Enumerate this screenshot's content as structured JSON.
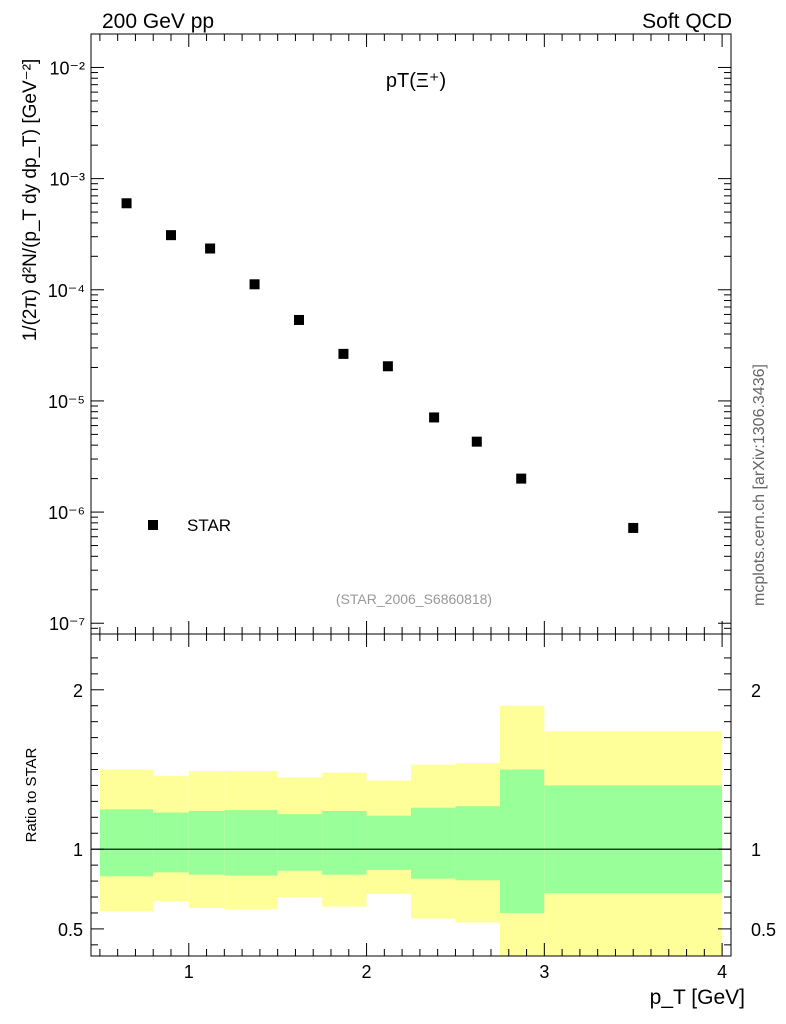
{
  "header": {
    "left": "200 GeV pp",
    "right": "Soft QCD"
  },
  "side_label": "mcplots.cern.ch [arXiv:1306.3436]",
  "watermark": "(STAR_2006_S6860818)",
  "chart_data": [
    {
      "type": "scatter",
      "panel": "main",
      "title": "pT(Ξ⁺)",
      "ylabel": "1/(2π) d²N/(p_T dy dp_T) [GeV⁻²]",
      "yscale": "log",
      "ylim": [
        8e-08,
        0.02
      ],
      "xlim": [
        0.45,
        4.05
      ],
      "ytick_labels": [
        "10⁻⁷",
        "10⁻⁶",
        "10⁻⁵",
        "10⁻⁴",
        "10⁻³",
        "10⁻²"
      ],
      "legend": [
        {
          "label": "STAR",
          "marker": "square",
          "color": "#000000"
        }
      ],
      "series": [
        {
          "name": "STAR",
          "x": [
            0.65,
            0.9,
            1.12,
            1.37,
            1.62,
            1.87,
            2.12,
            2.38,
            2.62,
            2.87,
            3.5
          ],
          "y": [
            0.0006,
            0.00031,
            0.000235,
            0.000112,
            5.35e-05,
            2.65e-05,
            2.05e-05,
            7.1e-06,
            4.3e-06,
            2e-06,
            7.2e-07
          ]
        }
      ]
    },
    {
      "type": "area",
      "panel": "ratio",
      "ylabel": "Ratio to STAR",
      "xlabel": "p_T [GeV]",
      "ylim": [
        0.33,
        2.35
      ],
      "xlim": [
        0.45,
        4.05
      ],
      "xtick_labels": [
        "1",
        "2",
        "3",
        "4"
      ],
      "ytick_labels": [
        "0.5",
        "1",
        "2"
      ],
      "reference_line": 1,
      "band_colors": {
        "outer": "#ffff99",
        "inner": "#99ff99"
      },
      "bins": [
        {
          "x0": 0.5,
          "x1": 0.8,
          "outer": [
            0.61,
            1.5
          ],
          "inner": [
            0.83,
            1.25
          ]
        },
        {
          "x0": 0.8,
          "x1": 1.0,
          "outer": [
            0.675,
            1.46
          ],
          "inner": [
            0.855,
            1.23
          ]
        },
        {
          "x0": 1.0,
          "x1": 1.2,
          "outer": [
            0.63,
            1.49
          ],
          "inner": [
            0.84,
            1.24
          ]
        },
        {
          "x0": 1.2,
          "x1": 1.5,
          "outer": [
            0.625,
            1.49
          ],
          "inner": [
            0.835,
            1.245
          ]
        },
        {
          "x0": 1.5,
          "x1": 1.75,
          "outer": [
            0.7,
            1.45
          ],
          "inner": [
            0.865,
            1.22
          ]
        },
        {
          "x0": 1.75,
          "x1": 2.0,
          "outer": [
            0.64,
            1.48
          ],
          "inner": [
            0.84,
            1.24
          ]
        },
        {
          "x0": 2.0,
          "x1": 2.25,
          "outer": [
            0.72,
            1.43
          ],
          "inner": [
            0.87,
            1.21
          ]
        },
        {
          "x0": 2.25,
          "x1": 2.5,
          "outer": [
            0.565,
            1.53
          ],
          "inner": [
            0.815,
            1.26
          ]
        },
        {
          "x0": 2.5,
          "x1": 2.75,
          "outer": [
            0.54,
            1.54
          ],
          "inner": [
            0.805,
            1.27
          ]
        },
        {
          "x0": 2.75,
          "x1": 3.0,
          "outer": [
            0.33,
            1.9
          ],
          "inner": [
            0.6,
            1.5
          ]
        },
        {
          "x0": 3.0,
          "x1": 4.0,
          "outer": [
            0.33,
            1.74
          ],
          "inner": [
            0.725,
            1.4
          ]
        }
      ]
    }
  ]
}
